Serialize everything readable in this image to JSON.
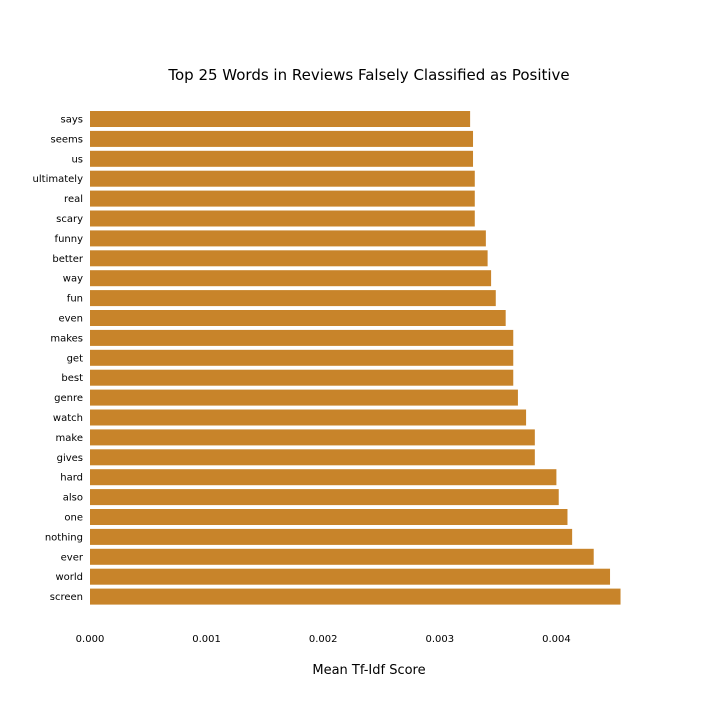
{
  "chart_data": {
    "type": "bar",
    "orientation": "horizontal",
    "title": "Top 25 Words in Reviews Falsely Classified as Positive",
    "xlabel": "Mean Tf-Idf Score",
    "ylabel": "",
    "xlim": [
      0,
      0.0046
    ],
    "xticks": [
      "0.000",
      "0.001",
      "0.002",
      "0.003",
      "0.004"
    ],
    "xtick_values": [
      0,
      0.001,
      0.002,
      0.003,
      0.004
    ],
    "grid": false,
    "bar_color": "#c8842a",
    "categories": [
      "says",
      "seems",
      "us",
      "ultimately",
      "real",
      "scary",
      "funny",
      "better",
      "way",
      "fun",
      "even",
      "makes",
      "get",
      "best",
      "genre",
      "watch",
      "make",
      "gives",
      "hard",
      "also",
      "one",
      "nothing",
      "ever",
      "world",
      "screen"
    ],
    "values": [
      0.00326,
      0.003285,
      0.003285,
      0.0033,
      0.0033,
      0.0033,
      0.003395,
      0.00341,
      0.00344,
      0.00348,
      0.003565,
      0.00363,
      0.00363,
      0.00363,
      0.00367,
      0.00374,
      0.003815,
      0.003815,
      0.004,
      0.00402,
      0.004095,
      0.004135,
      0.00432,
      0.00446,
      0.00455
    ]
  }
}
